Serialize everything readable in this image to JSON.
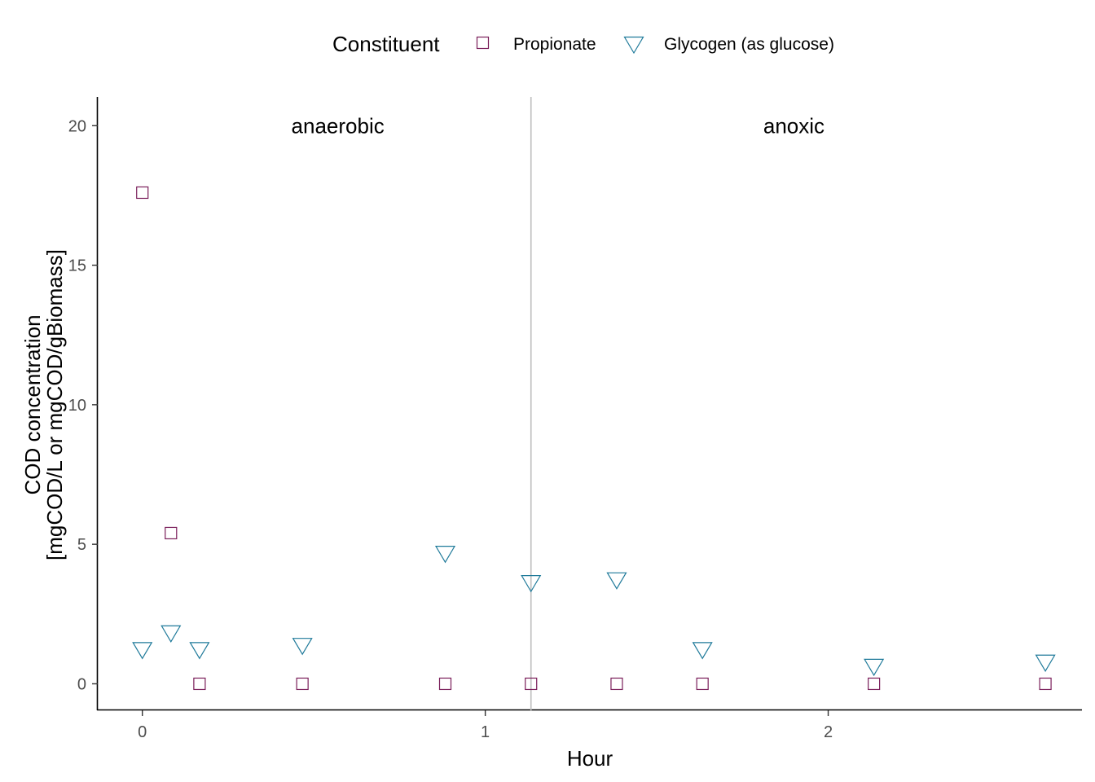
{
  "chart_data": {
    "type": "scatter",
    "xlabel": "Hour",
    "ylabel_lines": [
      "COD concentration",
      "[mgCOD/L or mgCOD/gBiomass]"
    ],
    "xlim": [
      -0.13,
      2.74
    ],
    "ylim": [
      -0.95,
      21
    ],
    "x_ticks": [
      0,
      1,
      2
    ],
    "y_ticks": [
      0,
      5,
      10,
      15,
      20
    ],
    "grid": false,
    "legend": {
      "title": "Constituent",
      "position": "top"
    },
    "vline": {
      "x": 1.1333,
      "color": "#bebebe"
    },
    "annotations": [
      {
        "text": "anaerobic",
        "x": 0.57,
        "y": 20
      },
      {
        "text": "anoxic",
        "x": 1.9,
        "y": 20
      }
    ],
    "series": [
      {
        "name": "Propionate",
        "shape": "square",
        "color": "#7a1e5a",
        "points": [
          [
            0,
            17.6
          ],
          [
            0.0833,
            5.4
          ],
          [
            0.1667,
            0
          ],
          [
            0.4667,
            0
          ],
          [
            0.8833,
            0
          ],
          [
            1.1333,
            0
          ],
          [
            1.3833,
            0
          ],
          [
            1.6333,
            0
          ],
          [
            2.1333,
            0
          ],
          [
            2.6333,
            0
          ]
        ]
      },
      {
        "name": "Glycogen (as glucose)",
        "shape": "triangle-down",
        "color": "#1f7a9a",
        "points": [
          [
            0,
            1.2
          ],
          [
            0.0833,
            1.8
          ],
          [
            0.1667,
            1.2
          ],
          [
            0.4667,
            1.35
          ],
          [
            0.8833,
            4.65
          ],
          [
            1.1333,
            3.6
          ],
          [
            1.3833,
            3.7
          ],
          [
            1.6333,
            1.2
          ],
          [
            2.1333,
            0.6
          ],
          [
            2.6333,
            0.75
          ]
        ]
      }
    ]
  }
}
